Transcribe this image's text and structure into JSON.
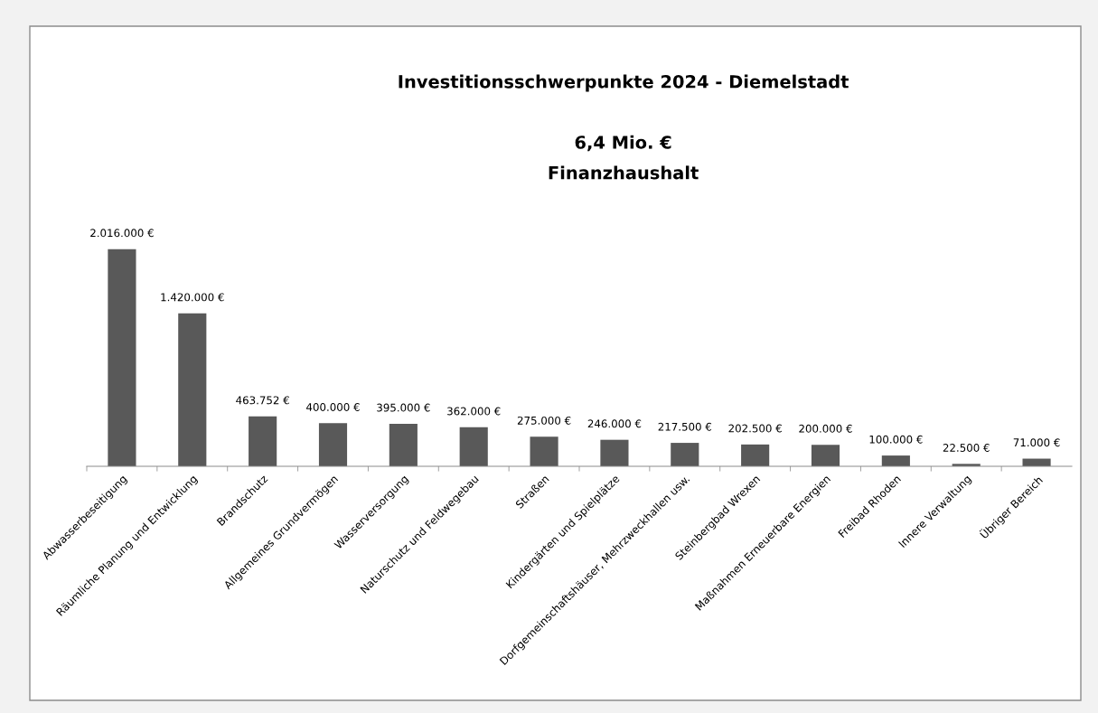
{
  "chart_data": {
    "type": "bar",
    "title": "Investitionsschwerpunkte 2024 - Diemelstadt",
    "subtitle": "6,4 Mio. €\nFinanzhaushalt",
    "categories": [
      "Abwasserbeseitigung",
      "Räumliche Planung und Entwicklung",
      "Brandschutz",
      "Allgemeines Grundvermögen",
      "Wasserversorgung",
      "Naturschutz und Feldwegebau",
      "Straßen",
      "Kindergärten und Spielplätze",
      "Dorfgemeinschaftshäuser, Mehrzweckhallen usw.",
      "Steinbergbad Wrexen",
      "Maßnahmen Erneuerbare Energien",
      "Freibad Rhoden",
      "Innere Verwaltung",
      "Übriger Bereich"
    ],
    "values": [
      2016000,
      1420000,
      463752,
      400000,
      395000,
      362000,
      275000,
      246000,
      217500,
      202500,
      200000,
      100000,
      22500,
      71000
    ],
    "value_labels": [
      "2.016.000 €",
      "1.420.000 €",
      "463.752 €",
      "400.000 €",
      "395.000 €",
      "362.000 €",
      "275.000 €",
      "246.000 €",
      "217.500 €",
      "202.500 €",
      "200.000 €",
      "100.000 €",
      "22.500 €",
      "71.000 €"
    ],
    "color": "#595959",
    "grid": false,
    "legend": false,
    "tick_labels": "x"
  }
}
